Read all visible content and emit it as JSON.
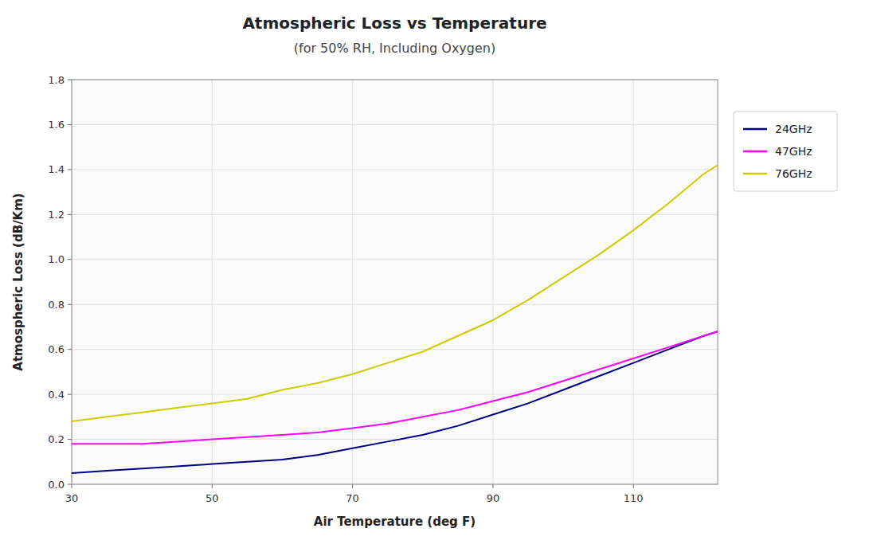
{
  "chart_data": {
    "type": "line",
    "title": "Atmospheric Loss vs Temperature",
    "subtitle": "(for 50% RH, Including Oxygen)",
    "x_label": "Air Temperature (deg F)",
    "y_label": "Atmospheric Loss (dB/Km)",
    "x": [
      30,
      35,
      40,
      45,
      50,
      55,
      60,
      65,
      70,
      75,
      80,
      85,
      90,
      95,
      100,
      105,
      110,
      115,
      120,
      122
    ],
    "series": [
      {
        "name": "24GHz",
        "color": "#000080",
        "values": [
          0.05,
          0.06,
          0.07,
          0.08,
          0.09,
          0.1,
          0.11,
          0.13,
          0.16,
          0.19,
          0.22,
          0.26,
          0.31,
          0.36,
          0.42,
          0.48,
          0.54,
          0.6,
          0.66,
          0.68
        ]
      },
      {
        "name": "47GHz",
        "color": "#FF00FF",
        "values": [
          0.18,
          0.18,
          0.18,
          0.19,
          0.2,
          0.21,
          0.22,
          0.23,
          0.25,
          0.27,
          0.3,
          0.33,
          0.37,
          0.41,
          0.46,
          0.51,
          0.56,
          0.61,
          0.66,
          0.68
        ]
      },
      {
        "name": "76GHz",
        "color": "#CCCC00",
        "values": [
          0.28,
          0.3,
          0.32,
          0.34,
          0.36,
          0.38,
          0.42,
          0.45,
          0.49,
          0.54,
          0.59,
          0.66,
          0.73,
          0.82,
          0.92,
          1.02,
          1.13,
          1.25,
          1.38,
          1.42
        ]
      }
    ],
    "xlim": [
      30,
      122
    ],
    "ylim": [
      0,
      1.8
    ],
    "xticks": [
      30,
      50,
      70,
      90,
      110
    ],
    "yticks": [
      {
        "value": 0,
        "label": "0.0"
      },
      0.2,
      0.4,
      0.6,
      0.8,
      {
        "value": 1.0,
        "label": "1.0"
      },
      1.2,
      1.4,
      1.6,
      1.8
    ],
    "grid": true,
    "legend": "right"
  }
}
